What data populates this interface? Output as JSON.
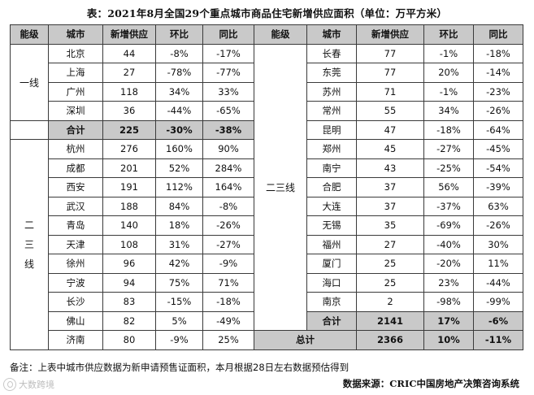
{
  "title": "表：2021年8月全国29个重点城市商品住宅新增供应面积（单位：万平方米）",
  "headers": [
    "能级",
    "城市",
    "新增供应",
    "环比",
    "同比",
    "能级",
    "城市",
    "新增供应",
    "环比",
    "同比"
  ],
  "tiers": {
    "tier1": "一线",
    "tier23": "二三线"
  },
  "left_rows": [
    [
      "北京",
      "44",
      "-8%",
      "-17%"
    ],
    [
      "上海",
      "27",
      "-78%",
      "-77%"
    ],
    [
      "广州",
      "118",
      "34%",
      "33%"
    ],
    [
      "深圳",
      "36",
      "-44%",
      "-65%"
    ],
    [
      "合计",
      "225",
      "-30%",
      "-38%"
    ],
    [
      "杭州",
      "276",
      "160%",
      "90%"
    ],
    [
      "成都",
      "201",
      "52%",
      "284%"
    ],
    [
      "西安",
      "191",
      "112%",
      "164%"
    ],
    [
      "武汉",
      "188",
      "84%",
      "-8%"
    ],
    [
      "青岛",
      "140",
      "18%",
      "-26%"
    ],
    [
      "天津",
      "108",
      "31%",
      "-27%"
    ],
    [
      "徐州",
      "96",
      "42%",
      "-9%"
    ],
    [
      "宁波",
      "94",
      "75%",
      "71%"
    ],
    [
      "长沙",
      "83",
      "-15%",
      "-18%"
    ],
    [
      "佛山",
      "82",
      "5%",
      "-49%"
    ],
    [
      "济南",
      "80",
      "-9%",
      "25%"
    ]
  ],
  "right_rows": [
    [
      "长春",
      "77",
      "-1%",
      "-18%"
    ],
    [
      "东莞",
      "77",
      "20%",
      "-14%"
    ],
    [
      "苏州",
      "71",
      "-1%",
      "-23%"
    ],
    [
      "常州",
      "55",
      "34%",
      "-26%"
    ],
    [
      "昆明",
      "47",
      "-18%",
      "-64%"
    ],
    [
      "郑州",
      "45",
      "-27%",
      "-45%"
    ],
    [
      "南宁",
      "43",
      "-25%",
      "-54%"
    ],
    [
      "合肥",
      "37",
      "56%",
      "-39%"
    ],
    [
      "大连",
      "37",
      "-37%",
      "63%"
    ],
    [
      "无锡",
      "35",
      "-69%",
      "-26%"
    ],
    [
      "福州",
      "27",
      "-40%",
      "30%"
    ],
    [
      "厦门",
      "25",
      "-20%",
      "11%"
    ],
    [
      "海口",
      "25",
      "23%",
      "-44%"
    ],
    [
      "南京",
      "2",
      "-98%",
      "-99%"
    ],
    [
      "合计",
      "2141",
      "17%",
      "-6%"
    ]
  ],
  "grand_total": [
    "总计",
    "2366",
    "10%",
    "-11%"
  ],
  "note": "备注：上表中城市供应数据为新申请预售证面积，本月根据28日左右数据预估得到",
  "source": "数据来源：CRIC中国房地产决策咨询系统",
  "watermark": "大数跨境"
}
